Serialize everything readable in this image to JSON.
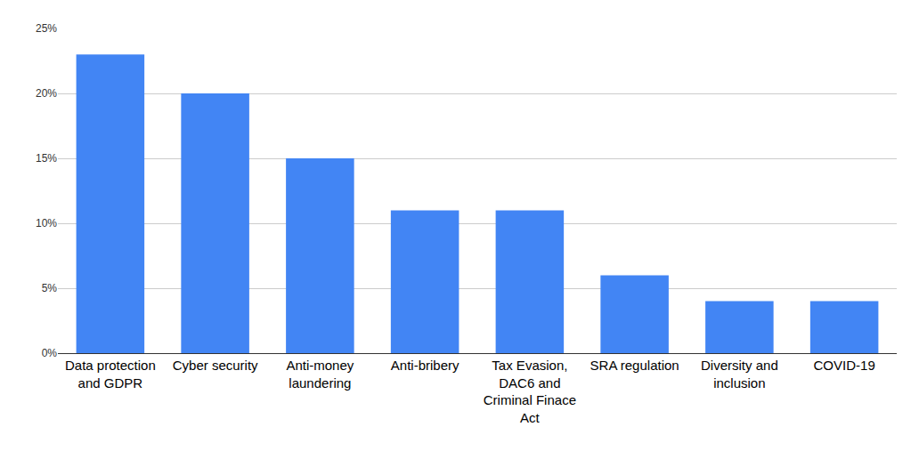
{
  "chart_data": {
    "type": "bar",
    "categories": [
      "Data protection and GDPR",
      "Cyber security",
      "Anti-money laundering",
      "Anti-bribery",
      "Tax Evasion, DAC6 and Criminal Finace Act",
      "SRA regulation",
      "Diversity and inclusion",
      "COVID-19"
    ],
    "values": [
      23,
      20,
      15,
      11,
      11,
      6,
      4,
      4
    ],
    "color": "#4285f4",
    "ylim": [
      0,
      25
    ],
    "yticks": [
      {
        "value": 0,
        "label": "0%"
      },
      {
        "value": 5,
        "label": "5%"
      },
      {
        "value": 10,
        "label": "10%"
      },
      {
        "value": 15,
        "label": "15%"
      },
      {
        "value": 20,
        "label": "20%"
      },
      {
        "value": 25,
        "label": "25%"
      }
    ],
    "grid": true
  }
}
